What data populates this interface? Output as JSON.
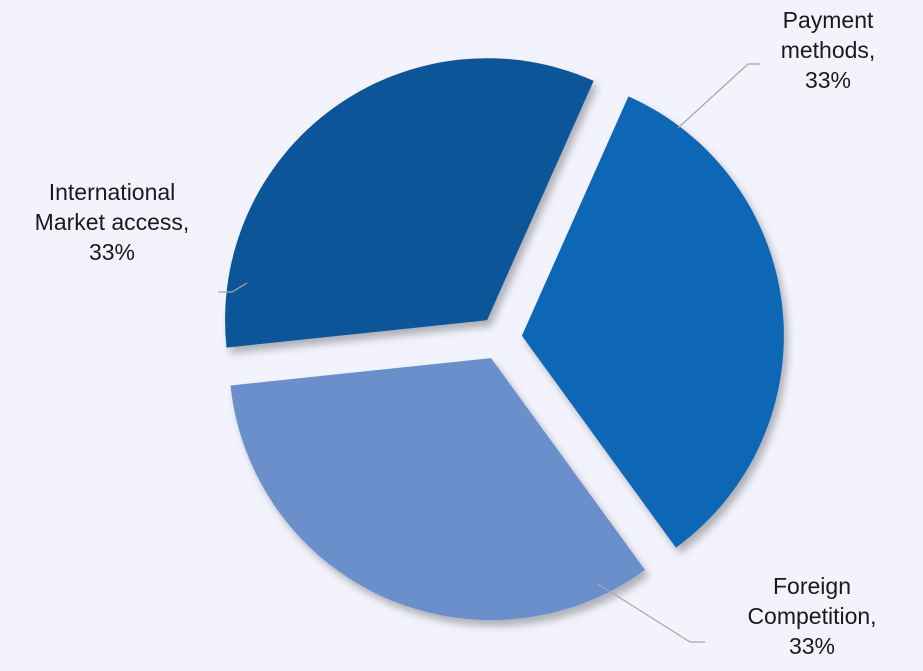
{
  "chart_data": {
    "type": "pie",
    "exploded": true,
    "legend": "none",
    "slices": [
      {
        "label": "Payment methods",
        "value": 33,
        "label_lines": [
          "Payment",
          "methods,",
          "33%"
        ],
        "color": "#0e66b6"
      },
      {
        "label": "Foreign Competition",
        "value": 33,
        "label_lines": [
          "Foreign",
          "Competition,",
          "33%"
        ],
        "color": "#6a8fcb"
      },
      {
        "label": "International Market access",
        "value": 33,
        "label_lines": [
          "International",
          "Market access,",
          "33%"
        ],
        "color": "#0b5499"
      }
    ]
  },
  "colors": {
    "background": "#f3f3fd",
    "leader_line": "#a6a6a6",
    "label_text": "#1a1a1a"
  }
}
